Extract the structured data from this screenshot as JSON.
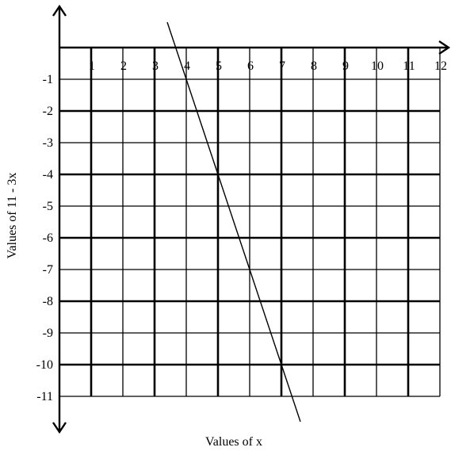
{
  "chart_data": {
    "type": "line",
    "xlabel": "Values of x",
    "ylabel": "Values of 11 - 3x",
    "xlim": [
      0,
      12
    ],
    "ylim": [
      -11,
      0
    ],
    "x_ticks": [
      "1",
      "2",
      "3",
      "4",
      "5",
      "6",
      "7",
      "8",
      "9",
      "10",
      "11",
      "12"
    ],
    "y_ticks": [
      "-1",
      "-2",
      "-3",
      "-4",
      "-5",
      "-6",
      "-7",
      "-8",
      "-9",
      "-10",
      "-11"
    ],
    "grid": true,
    "series": [
      {
        "x": [
          3.4,
          4,
          5,
          6,
          7,
          7.6
        ],
        "y": [
          0.8,
          -1,
          -4,
          -7,
          -10,
          -11.8
        ]
      }
    ]
  }
}
